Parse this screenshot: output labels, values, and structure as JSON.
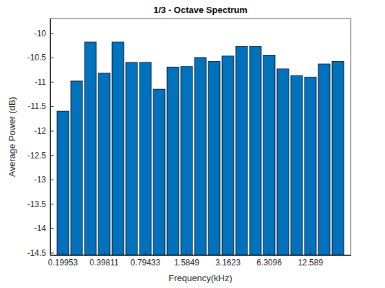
{
  "chart_data": {
    "type": "bar",
    "title": "1/3 - Octave Spectrum",
    "x_label": "Frequency(kHz)",
    "y_label": "Average Power (dB)",
    "categories": [
      "0.19953",
      null,
      null,
      "0.39811",
      null,
      null,
      "0.79433",
      null,
      null,
      "1.5849",
      null,
      null,
      "3.1623",
      null,
      null,
      "6.3096",
      null,
      null,
      "12.589",
      null,
      null
    ],
    "values": [
      -11.6,
      -10.98,
      -10.18,
      -10.82,
      -10.18,
      -10.6,
      -10.6,
      -11.15,
      -10.7,
      -10.68,
      -10.5,
      -10.58,
      -10.47,
      -10.27,
      -10.27,
      -10.45,
      -10.73,
      -10.87,
      -10.9,
      -10.63,
      -10.58
    ],
    "color": "#0072bd",
    "ylim": [
      -14.55,
      -9.7
    ],
    "yticks": [
      -14.5,
      -14,
      -13.5,
      -13,
      -12.5,
      -12,
      -11.5,
      -11,
      -10.5,
      -10
    ]
  }
}
